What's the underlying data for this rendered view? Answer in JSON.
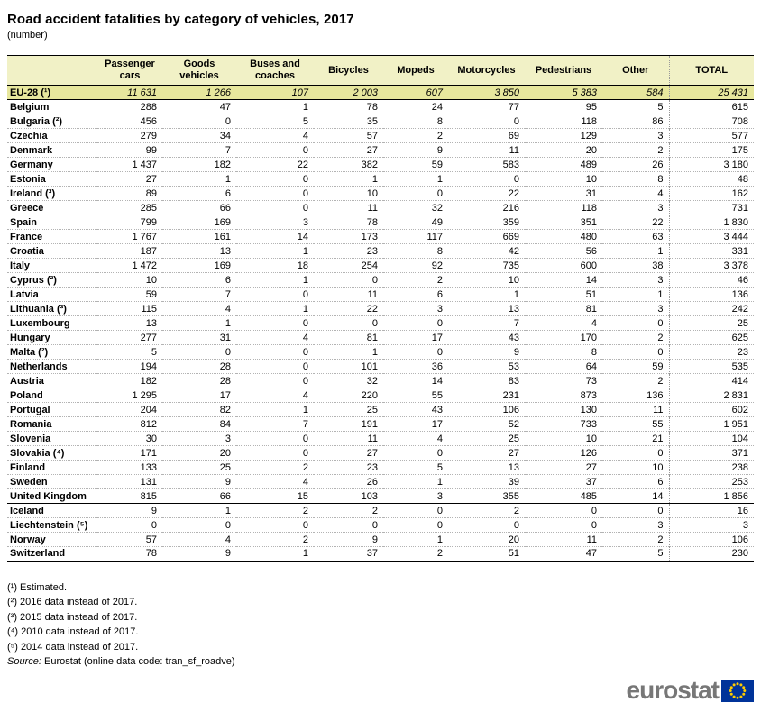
{
  "title": "Road accident fatalities by category of vehicles, 2017",
  "subtitle": "(number)",
  "chart_data": {
    "type": "table",
    "title": "Road accident fatalities by category of vehicles, 2017",
    "subtitle": "(number)",
    "columns": [
      "Passenger cars",
      "Goods vehicles",
      "Buses and coaches",
      "Bicycles",
      "Mopeds",
      "Motorcycles",
      "Pedestrians",
      "Other",
      "TOTAL"
    ],
    "rows": [
      {
        "label": "EU-28 (¹)",
        "section": "aggregate",
        "values": [
          "11 631",
          "1 266",
          "107",
          "2 003",
          "607",
          "3 850",
          "5 383",
          "584",
          "25 431"
        ]
      },
      {
        "label": "Belgium",
        "section": "eu",
        "values": [
          "288",
          "47",
          "1",
          "78",
          "24",
          "77",
          "95",
          "5",
          "615"
        ]
      },
      {
        "label": "Bulgaria (²)",
        "section": "eu",
        "values": [
          "456",
          "0",
          "5",
          "35",
          "8",
          "0",
          "118",
          "86",
          "708"
        ]
      },
      {
        "label": "Czechia",
        "section": "eu",
        "values": [
          "279",
          "34",
          "4",
          "57",
          "2",
          "69",
          "129",
          "3",
          "577"
        ]
      },
      {
        "label": "Denmark",
        "section": "eu",
        "values": [
          "99",
          "7",
          "0",
          "27",
          "9",
          "11",
          "20",
          "2",
          "175"
        ]
      },
      {
        "label": "Germany",
        "section": "eu",
        "values": [
          "1 437",
          "182",
          "22",
          "382",
          "59",
          "583",
          "489",
          "26",
          "3 180"
        ]
      },
      {
        "label": "Estonia",
        "section": "eu",
        "values": [
          "27",
          "1",
          "0",
          "1",
          "1",
          "0",
          "10",
          "8",
          "48"
        ]
      },
      {
        "label": "Ireland (³)",
        "section": "eu",
        "values": [
          "89",
          "6",
          "0",
          "10",
          "0",
          "22",
          "31",
          "4",
          "162"
        ]
      },
      {
        "label": "Greece",
        "section": "eu",
        "values": [
          "285",
          "66",
          "0",
          "11",
          "32",
          "216",
          "118",
          "3",
          "731"
        ]
      },
      {
        "label": "Spain",
        "section": "eu",
        "values": [
          "799",
          "169",
          "3",
          "78",
          "49",
          "359",
          "351",
          "22",
          "1 830"
        ]
      },
      {
        "label": "France",
        "section": "eu",
        "values": [
          "1 767",
          "161",
          "14",
          "173",
          "117",
          "669",
          "480",
          "63",
          "3 444"
        ]
      },
      {
        "label": "Croatia",
        "section": "eu",
        "values": [
          "187",
          "13",
          "1",
          "23",
          "8",
          "42",
          "56",
          "1",
          "331"
        ]
      },
      {
        "label": "Italy",
        "section": "eu",
        "values": [
          "1 472",
          "169",
          "18",
          "254",
          "92",
          "735",
          "600",
          "38",
          "3 378"
        ]
      },
      {
        "label": "Cyprus (²)",
        "section": "eu",
        "values": [
          "10",
          "6",
          "1",
          "0",
          "2",
          "10",
          "14",
          "3",
          "46"
        ]
      },
      {
        "label": "Latvia",
        "section": "eu",
        "values": [
          "59",
          "7",
          "0",
          "11",
          "6",
          "1",
          "51",
          "1",
          "136"
        ]
      },
      {
        "label": "Lithuania (³)",
        "section": "eu",
        "values": [
          "115",
          "4",
          "1",
          "22",
          "3",
          "13",
          "81",
          "3",
          "242"
        ]
      },
      {
        "label": "Luxembourg",
        "section": "eu",
        "values": [
          "13",
          "1",
          "0",
          "0",
          "0",
          "7",
          "4",
          "0",
          "25"
        ]
      },
      {
        "label": "Hungary",
        "section": "eu",
        "values": [
          "277",
          "31",
          "4",
          "81",
          "17",
          "43",
          "170",
          "2",
          "625"
        ]
      },
      {
        "label": "Malta (²)",
        "section": "eu",
        "values": [
          "5",
          "0",
          "0",
          "1",
          "0",
          "9",
          "8",
          "0",
          "23"
        ]
      },
      {
        "label": "Netherlands",
        "section": "eu",
        "values": [
          "194",
          "28",
          "0",
          "101",
          "36",
          "53",
          "64",
          "59",
          "535"
        ]
      },
      {
        "label": "Austria",
        "section": "eu",
        "values": [
          "182",
          "28",
          "0",
          "32",
          "14",
          "83",
          "73",
          "2",
          "414"
        ]
      },
      {
        "label": "Poland",
        "section": "eu",
        "values": [
          "1 295",
          "17",
          "4",
          "220",
          "55",
          "231",
          "873",
          "136",
          "2 831"
        ]
      },
      {
        "label": "Portugal",
        "section": "eu",
        "values": [
          "204",
          "82",
          "1",
          "25",
          "43",
          "106",
          "130",
          "11",
          "602"
        ]
      },
      {
        "label": "Romania",
        "section": "eu",
        "values": [
          "812",
          "84",
          "7",
          "191",
          "17",
          "52",
          "733",
          "55",
          "1 951"
        ]
      },
      {
        "label": "Slovenia",
        "section": "eu",
        "values": [
          "30",
          "3",
          "0",
          "11",
          "4",
          "25",
          "10",
          "21",
          "104"
        ]
      },
      {
        "label": "Slovakia (⁴)",
        "section": "eu",
        "values": [
          "171",
          "20",
          "0",
          "27",
          "0",
          "27",
          "126",
          "0",
          "371"
        ]
      },
      {
        "label": "Finland",
        "section": "eu",
        "values": [
          "133",
          "25",
          "2",
          "23",
          "5",
          "13",
          "27",
          "10",
          "238"
        ]
      },
      {
        "label": "Sweden",
        "section": "eu",
        "values": [
          "131",
          "9",
          "4",
          "26",
          "1",
          "39",
          "37",
          "6",
          "253"
        ]
      },
      {
        "label": "United Kingdom",
        "section": "eu",
        "values": [
          "815",
          "66",
          "15",
          "103",
          "3",
          "355",
          "485",
          "14",
          "1 856"
        ]
      },
      {
        "label": "Iceland",
        "section": "efta",
        "values": [
          "9",
          "1",
          "2",
          "2",
          "0",
          "2",
          "0",
          "0",
          "16"
        ]
      },
      {
        "label": "Liechtenstein (⁵)",
        "section": "efta",
        "values": [
          "0",
          "0",
          "0",
          "0",
          "0",
          "0",
          "0",
          "3",
          "3"
        ]
      },
      {
        "label": "Norway",
        "section": "efta",
        "values": [
          "57",
          "4",
          "2",
          "9",
          "1",
          "20",
          "11",
          "2",
          "106"
        ]
      },
      {
        "label": "Switzerland",
        "section": "efta",
        "values": [
          "78",
          "9",
          "1",
          "37",
          "2",
          "51",
          "47",
          "5",
          "230"
        ]
      }
    ]
  },
  "footnotes": [
    "(¹) Estimated.",
    "(²) 2016 data instead of 2017.",
    "(³) 2015 data instead of 2017.",
    "(⁴) 2010 data instead of 2017.",
    "(⁵) 2014 data instead of 2017."
  ],
  "source": {
    "label": "Source:",
    "text": "Eurostat (online data code: tran_sf_roadve)"
  },
  "logo": {
    "text": "eurostat"
  },
  "colors": {
    "header_bg": "#f1f1c6",
    "aggregate_row_bg": "#e7e79d",
    "eu_flag_blue": "#003399",
    "star_yellow": "#ffcc00",
    "logo_gray": "#777777"
  }
}
